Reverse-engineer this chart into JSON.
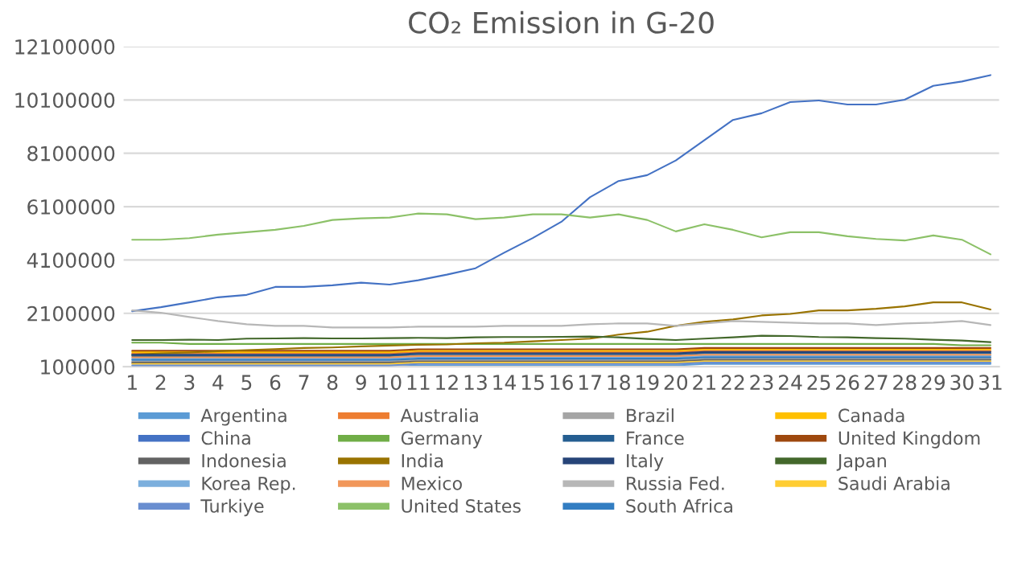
{
  "chart_data": {
    "type": "line",
    "title": "CO₂ Emission in G-20",
    "categories": [
      "1",
      "2",
      "3",
      "4",
      "5",
      "6",
      "7",
      "8",
      "9",
      "10",
      "11",
      "12",
      "13",
      "14",
      "15",
      "16",
      "17",
      "18",
      "19",
      "20",
      "21",
      "22",
      "23",
      "24",
      "25",
      "26",
      "27",
      "28",
      "29",
      "30",
      "31"
    ],
    "ylim": [
      100000,
      12100000
    ],
    "yticks": [
      100000,
      2100000,
      4100000,
      6100000,
      8100000,
      10100000,
      12100000
    ],
    "grid": "y",
    "legend": "bottom",
    "marker": "none",
    "line_style": "solid",
    "series": [
      {
        "name": "Argentina",
        "color": "#5b9bd5",
        "values": [
          100000,
          100000,
          100000,
          100000,
          100000,
          100000,
          100000,
          100000,
          100000,
          100000,
          150000,
          150000,
          150000,
          150000,
          150000,
          150000,
          150000,
          150000,
          150000,
          150000,
          200000,
          200000,
          200000,
          200000,
          200000,
          200000,
          200000,
          200000,
          200000,
          200000,
          200000
        ]
      },
      {
        "name": "Australia",
        "color": "#ed7d31",
        "values": [
          600000,
          600000,
          600000,
          600000,
          600000,
          600000,
          600000,
          600000,
          600000,
          600000,
          650000,
          650000,
          650000,
          650000,
          650000,
          650000,
          650000,
          650000,
          650000,
          650000,
          700000,
          700000,
          700000,
          700000,
          700000,
          700000,
          700000,
          700000,
          700000,
          700000,
          700000
        ]
      },
      {
        "name": "Brazil",
        "color": "#a5a5a5",
        "values": [
          300000,
          300000,
          300000,
          300000,
          300000,
          300000,
          300000,
          300000,
          300000,
          300000,
          350000,
          350000,
          350000,
          350000,
          350000,
          350000,
          350000,
          350000,
          350000,
          350000,
          400000,
          400000,
          400000,
          400000,
          400000,
          400000,
          400000,
          400000,
          400000,
          400000,
          400000
        ]
      },
      {
        "name": "Canada",
        "color": "#ffc000",
        "values": [
          650000,
          650000,
          650000,
          650000,
          650000,
          650000,
          650000,
          650000,
          650000,
          650000,
          700000,
          700000,
          700000,
          700000,
          700000,
          700000,
          700000,
          700000,
          700000,
          700000,
          750000,
          750000,
          750000,
          750000,
          750000,
          750000,
          750000,
          750000,
          750000,
          750000,
          750000
        ]
      },
      {
        "name": "China",
        "color": "#4472c4",
        "values": [
          2180000,
          2330000,
          2510000,
          2700000,
          2790000,
          3090000,
          3090000,
          3150000,
          3250000,
          3180000,
          3340000,
          3550000,
          3790000,
          4370000,
          4920000,
          5530000,
          6450000,
          7060000,
          7280000,
          7830000,
          8590000,
          9350000,
          9600000,
          10020000,
          10080000,
          9930000,
          9930000,
          10110000,
          10630000,
          10790000,
          11030000
        ]
      },
      {
        "name": "Germany",
        "color": "#70ad47",
        "values": [
          1000000,
          1000000,
          950000,
          950000,
          950000,
          950000,
          950000,
          950000,
          950000,
          950000,
          950000,
          950000,
          950000,
          950000,
          950000,
          950000,
          950000,
          950000,
          950000,
          950000,
          950000,
          950000,
          950000,
          950000,
          950000,
          950000,
          950000,
          950000,
          950000,
          900000,
          900000
        ]
      },
      {
        "name": "France",
        "color": "#255e91",
        "values": [
          500000,
          500000,
          500000,
          500000,
          500000,
          500000,
          500000,
          500000,
          500000,
          500000,
          550000,
          550000,
          550000,
          550000,
          550000,
          550000,
          550000,
          550000,
          550000,
          550000,
          600000,
          600000,
          600000,
          600000,
          600000,
          600000,
          600000,
          600000,
          600000,
          600000,
          600000
        ]
      },
      {
        "name": "United Kingdom",
        "color": "#9e480e",
        "values": [
          700000,
          700000,
          700000,
          700000,
          700000,
          700000,
          700000,
          700000,
          700000,
          700000,
          750000,
          750000,
          750000,
          750000,
          750000,
          750000,
          750000,
          750000,
          750000,
          750000,
          800000,
          800000,
          800000,
          800000,
          800000,
          800000,
          800000,
          800000,
          800000,
          800000,
          800000
        ]
      },
      {
        "name": "Indonesia",
        "color": "#636363",
        "values": [
          250000,
          250000,
          250000,
          250000,
          250000,
          250000,
          250000,
          250000,
          250000,
          250000,
          300000,
          300000,
          300000,
          300000,
          300000,
          300000,
          300000,
          300000,
          300000,
          300000,
          350000,
          350000,
          350000,
          350000,
          350000,
          350000,
          350000,
          350000,
          350000,
          350000,
          350000
        ]
      },
      {
        "name": "India",
        "color": "#997300",
        "values": [
          550000,
          600000,
          630000,
          680000,
          720000,
          760000,
          800000,
          820000,
          860000,
          890000,
          920000,
          930000,
          980000,
          1000000,
          1050000,
          1100000,
          1150000,
          1300000,
          1410000,
          1630000,
          1780000,
          1870000,
          2020000,
          2080000,
          2210000,
          2210000,
          2270000,
          2360000,
          2510000,
          2510000,
          2240000
        ]
      },
      {
        "name": "Italy",
        "color": "#264478",
        "values": [
          550000,
          550000,
          550000,
          550000,
          550000,
          550000,
          550000,
          550000,
          550000,
          550000,
          600000,
          600000,
          600000,
          600000,
          600000,
          600000,
          600000,
          600000,
          600000,
          600000,
          650000,
          650000,
          650000,
          650000,
          650000,
          650000,
          650000,
          650000,
          650000,
          650000,
          650000
        ]
      },
      {
        "name": "Japan",
        "color": "#43682b",
        "values": [
          1100000,
          1100000,
          1110000,
          1100000,
          1150000,
          1160000,
          1170000,
          1160000,
          1160000,
          1170000,
          1180000,
          1170000,
          1200000,
          1210000,
          1210000,
          1220000,
          1230000,
          1200000,
          1140000,
          1100000,
          1150000,
          1200000,
          1260000,
          1250000,
          1210000,
          1200000,
          1170000,
          1150000,
          1110000,
          1080000,
          1020000
        ]
      },
      {
        "name": "Korea Rep.",
        "color": "#7cafdd",
        "values": [
          400000,
          400000,
          400000,
          400000,
          400000,
          400000,
          400000,
          400000,
          400000,
          400000,
          450000,
          450000,
          450000,
          450000,
          450000,
          450000,
          450000,
          450000,
          450000,
          450000,
          500000,
          500000,
          500000,
          500000,
          500000,
          500000,
          500000,
          500000,
          500000,
          500000,
          500000
        ]
      },
      {
        "name": "Mexico",
        "color": "#f1975a",
        "values": [
          450000,
          450000,
          450000,
          450000,
          450000,
          450000,
          450000,
          450000,
          450000,
          450000,
          500000,
          500000,
          500000,
          500000,
          500000,
          500000,
          500000,
          500000,
          500000,
          500000,
          550000,
          550000,
          550000,
          550000,
          550000,
          550000,
          550000,
          550000,
          550000,
          550000,
          550000
        ]
      },
      {
        "name": "Russia Fed.",
        "color": "#b7b7b7",
        "values": [
          2210000,
          2120000,
          1960000,
          1810000,
          1690000,
          1630000,
          1630000,
          1570000,
          1570000,
          1570000,
          1600000,
          1600000,
          1600000,
          1630000,
          1630000,
          1630000,
          1690000,
          1720000,
          1720000,
          1630000,
          1720000,
          1810000,
          1780000,
          1750000,
          1720000,
          1720000,
          1660000,
          1720000,
          1750000,
          1810000,
          1660000
        ]
      },
      {
        "name": "Saudi Arabia",
        "color": "#ffcd33",
        "values": [
          200000,
          200000,
          200000,
          200000,
          200000,
          200000,
          200000,
          200000,
          200000,
          200000,
          250000,
          250000,
          250000,
          250000,
          250000,
          250000,
          250000,
          250000,
          250000,
          250000,
          300000,
          300000,
          300000,
          300000,
          300000,
          300000,
          300000,
          300000,
          300000,
          300000,
          300000
        ]
      },
      {
        "name": "Turkiye",
        "color": "#698ed0",
        "values": [
          150000,
          150000,
          150000,
          150000,
          150000,
          150000,
          150000,
          150000,
          150000,
          150000,
          200000,
          200000,
          200000,
          200000,
          200000,
          200000,
          200000,
          200000,
          200000,
          200000,
          250000,
          250000,
          250000,
          250000,
          250000,
          250000,
          250000,
          250000,
          250000,
          250000,
          250000
        ]
      },
      {
        "name": "United States",
        "color": "#8cc168",
        "values": [
          4860000,
          4860000,
          4920000,
          5050000,
          5140000,
          5230000,
          5380000,
          5600000,
          5660000,
          5690000,
          5840000,
          5810000,
          5630000,
          5690000,
          5810000,
          5810000,
          5690000,
          5810000,
          5600000,
          5170000,
          5440000,
          5230000,
          4950000,
          5140000,
          5140000,
          4990000,
          4890000,
          4830000,
          5020000,
          4860000,
          4310000
        ]
      },
      {
        "name": "South Africa",
        "color": "#327dc2",
        "values": [
          350000,
          350000,
          350000,
          350000,
          350000,
          350000,
          350000,
          350000,
          350000,
          350000,
          400000,
          400000,
          400000,
          400000,
          400000,
          400000,
          400000,
          400000,
          400000,
          400000,
          450000,
          450000,
          450000,
          450000,
          450000,
          450000,
          450000,
          450000,
          450000,
          450000,
          450000
        ]
      }
    ]
  }
}
